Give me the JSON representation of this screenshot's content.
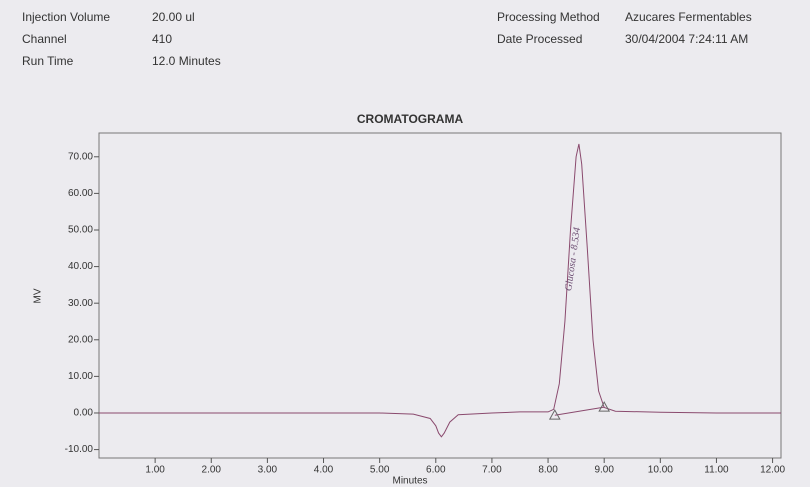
{
  "header": {
    "left": [
      [
        "Injection Volume",
        "20.00 ul"
      ],
      [
        "Channel",
        "410"
      ],
      [
        "Run Time",
        "12.0 Minutes"
      ]
    ],
    "right": [
      [
        "Processing Method",
        "Azucares Fermentables"
      ],
      [
        "Date Processed",
        "30/04/2004 7:24:11 AM"
      ]
    ]
  },
  "chart_data": {
    "type": "line",
    "title": "CROMATOGRAMA",
    "x_label": "Minutes",
    "y_label": "MV",
    "x": [
      0,
      1,
      2,
      3,
      4,
      5,
      5.6,
      5.9,
      6.0,
      6.05,
      6.1,
      6.15,
      6.25,
      6.4,
      7,
      7.5,
      8.0,
      8.1,
      8.2,
      8.3,
      8.4,
      8.5,
      8.55,
      8.6,
      8.7,
      8.8,
      8.9,
      9.0,
      9.2,
      10,
      11,
      12.15
    ],
    "series": [
      {
        "name": "410",
        "color": "#8a4a6e",
        "values": [
          0,
          0,
          0,
          0,
          0,
          0,
          -0.3,
          -1.5,
          -3.5,
          -5.5,
          -6.5,
          -5.5,
          -2.5,
          -0.5,
          0,
          0.3,
          0.3,
          1,
          8,
          25,
          50,
          70,
          73.5,
          68,
          45,
          20,
          6,
          1.5,
          0.5,
          0.2,
          0,
          0
        ]
      }
    ],
    "baseline": {
      "x": [
        8.12,
        9.0
      ],
      "values": [
        -0.6,
        1.6
      ]
    },
    "annotation": {
      "text": "Glucosa - 8.534",
      "x": 8.45,
      "y": 42
    },
    "xlim": [
      0,
      12.15
    ],
    "ylim": [
      -12.3,
      76.5
    ],
    "xticks": [
      {
        "value": 1,
        "label": "1.00"
      },
      {
        "value": 2,
        "label": "2.00"
      },
      {
        "value": 3,
        "label": "3.00"
      },
      {
        "value": 4,
        "label": "4.00"
      },
      {
        "value": 5,
        "label": "5.00"
      },
      {
        "value": 6,
        "label": "6.00"
      },
      {
        "value": 7,
        "label": "7.00"
      },
      {
        "value": 8,
        "label": "8.00"
      },
      {
        "value": 9,
        "label": "9.00"
      },
      {
        "value": 10,
        "label": "10.00"
      },
      {
        "value": 11,
        "label": "11.00"
      },
      {
        "value": 12,
        "label": "12.00"
      }
    ],
    "yticks": [
      {
        "value": -10,
        "label": "-10.00"
      },
      {
        "value": 0,
        "label": "0.00"
      },
      {
        "value": 10,
        "label": "10.00"
      },
      {
        "value": 20,
        "label": "20.00"
      },
      {
        "value": 30,
        "label": "30.00"
      },
      {
        "value": 40,
        "label": "40.00"
      },
      {
        "value": 50,
        "label": "50.00"
      },
      {
        "value": 60,
        "label": "60.00"
      },
      {
        "value": 70,
        "label": "70.00"
      }
    ]
  }
}
